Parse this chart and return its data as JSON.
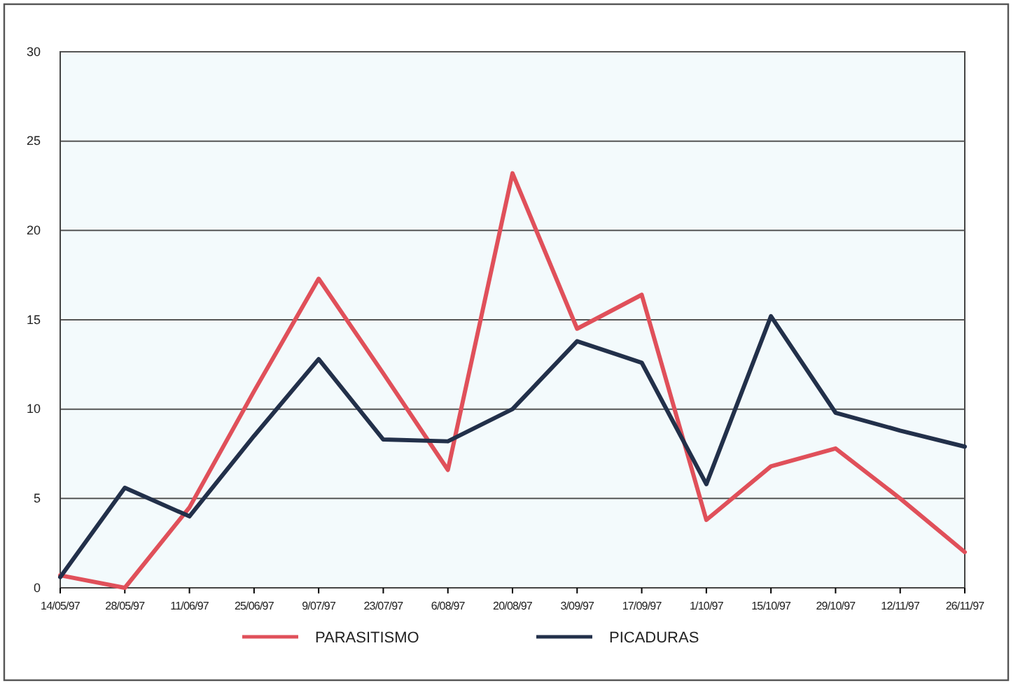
{
  "chart_data": {
    "type": "line",
    "categories": [
      "14/05/97",
      "28/05/97",
      "11/06/97",
      "25/06/97",
      "9/07/97",
      "23/07/97",
      "6/08/97",
      "20/08/97",
      "3/09/97",
      "17/09/97",
      "1/10/97",
      "15/10/97",
      "29/10/97",
      "12/11/97",
      "26/11/97"
    ],
    "series": [
      {
        "name": "PARASITISMO",
        "color": "#e0505a",
        "values": [
          0.7,
          0,
          4.5,
          11,
          17.3,
          12,
          6.6,
          23.2,
          14.5,
          16.4,
          3.8,
          6.8,
          7.8,
          5,
          2
        ]
      },
      {
        "name": "PICADURAS",
        "color": "#22304a",
        "values": [
          0.6,
          5.6,
          4,
          8.5,
          12.8,
          8.3,
          8.2,
          10,
          13.8,
          12.6,
          5.8,
          15.2,
          9.8,
          8.8,
          7.9
        ]
      }
    ],
    "ylim": [
      0,
      30
    ],
    "yticks": [
      0,
      5,
      10,
      15,
      20,
      25,
      30
    ],
    "grid": "y",
    "legend": "bottom",
    "marker": "none",
    "line_style": "solid"
  }
}
